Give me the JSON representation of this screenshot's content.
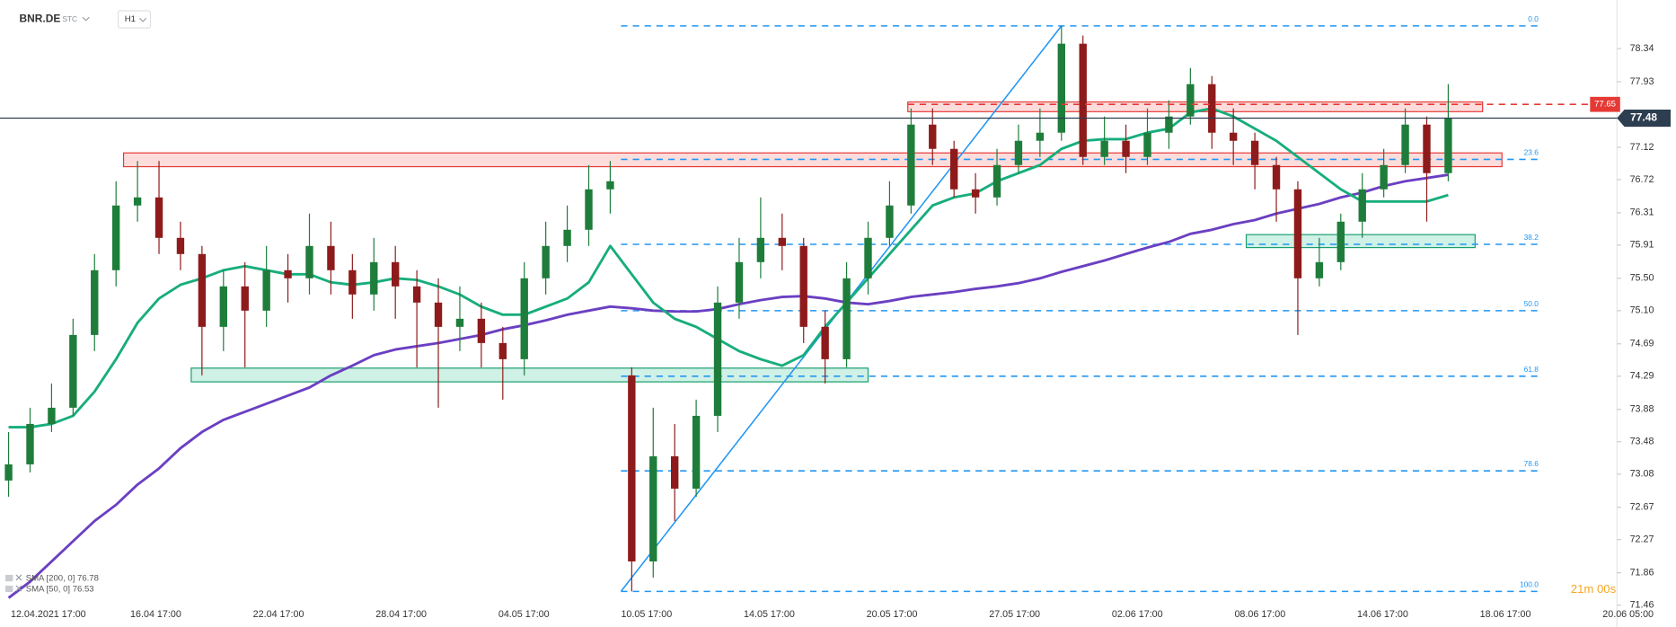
{
  "header": {
    "symbol": "BNR.DE",
    "badge": "STC",
    "interval": "H1"
  },
  "countdown": "21m 00s",
  "chart_data": {
    "type": "candlestick",
    "x_labels": [
      "12.04.2021 17:00",
      "16.04 17:00",
      "22.04 17:00",
      "28.04 17:00",
      "04.05 17:00",
      "10.05 17:00",
      "14.05 17:00",
      "20.05 17:00",
      "27.05 17:00",
      "02.06 17:00",
      "08.06 17:00",
      "14.06 17:00",
      "18.06 17:00",
      "20.06 05:00"
    ],
    "ylim": [
      71.19,
      78.94
    ],
    "yticks": [
      78.34,
      77.93,
      77.12,
      76.72,
      76.31,
      75.91,
      {
        "value": 75.5,
        "label": "75.50"
      },
      {
        "value": 75.1,
        "label": "75.10"
      },
      74.69,
      74.29,
      73.88,
      73.48,
      73.08,
      72.67,
      72.27,
      71.86,
      71.46
    ],
    "up_color": "#1e7d3a",
    "down_color": "#8e1b1b",
    "open": [
      73.0,
      73.2,
      73.7,
      73.9,
      74.8,
      75.6,
      76.4,
      76.5,
      76.0,
      75.8,
      74.9,
      75.4,
      75.1,
      75.6,
      75.5,
      75.9,
      75.6,
      75.3,
      75.7,
      75.4,
      75.2,
      74.9,
      75.0,
      74.7,
      74.5,
      75.5,
      75.9,
      76.1,
      76.6,
      74.3,
      72.0,
      73.3,
      72.9,
      73.8,
      75.2,
      75.7,
      76.0,
      75.9,
      74.9,
      74.5,
      75.5,
      76.0,
      76.4,
      77.4,
      77.1,
      76.6,
      76.5,
      76.9,
      77.2,
      77.3,
      78.4,
      77.0,
      77.2,
      77.0,
      77.3,
      77.5,
      77.9,
      77.3,
      77.2,
      76.9,
      76.6,
      75.5,
      75.7,
      76.2,
      76.6,
      76.9,
      77.4,
      76.8
    ],
    "high": [
      73.6,
      73.9,
      74.2,
      75.0,
      75.8,
      76.7,
      76.95,
      76.95,
      76.2,
      75.9,
      75.6,
      75.7,
      75.9,
      75.8,
      76.3,
      76.2,
      75.8,
      76.0,
      75.9,
      75.6,
      75.5,
      75.4,
      75.2,
      74.9,
      75.7,
      76.2,
      76.4,
      76.9,
      76.95,
      74.4,
      73.9,
      73.7,
      74.0,
      75.4,
      76.0,
      76.5,
      76.3,
      76.0,
      75.1,
      75.7,
      76.2,
      76.7,
      77.6,
      77.6,
      77.2,
      76.8,
      77.1,
      77.4,
      77.6,
      78.62,
      78.5,
      77.5,
      77.4,
      77.6,
      77.7,
      78.1,
      78.0,
      77.6,
      77.3,
      77.0,
      76.7,
      76.0,
      76.3,
      76.8,
      77.1,
      77.6,
      77.5,
      77.9
    ],
    "low": [
      72.8,
      73.1,
      73.6,
      73.8,
      74.6,
      75.4,
      76.2,
      75.8,
      75.6,
      74.3,
      74.6,
      74.4,
      74.9,
      75.2,
      75.3,
      75.3,
      75.0,
      75.1,
      75.0,
      74.4,
      73.9,
      74.6,
      74.4,
      74.0,
      74.3,
      75.3,
      75.7,
      75.9,
      76.3,
      71.63,
      71.8,
      72.5,
      72.8,
      73.6,
      75.0,
      75.5,
      75.6,
      74.7,
      74.2,
      74.4,
      75.3,
      75.9,
      76.3,
      76.9,
      76.5,
      76.3,
      76.4,
      76.8,
      77.0,
      77.2,
      76.9,
      76.9,
      76.8,
      76.9,
      77.1,
      77.4,
      77.1,
      76.9,
      76.6,
      76.2,
      74.8,
      75.4,
      75.6,
      76.0,
      76.5,
      76.8,
      76.2,
      76.7
    ],
    "close": [
      73.2,
      73.7,
      73.9,
      74.8,
      75.6,
      76.4,
      76.5,
      76.0,
      75.8,
      74.9,
      75.4,
      75.1,
      75.6,
      75.5,
      75.9,
      75.6,
      75.3,
      75.7,
      75.4,
      75.2,
      74.9,
      75.0,
      74.7,
      74.5,
      75.5,
      75.9,
      76.1,
      76.6,
      76.7,
      72.0,
      73.3,
      72.9,
      73.8,
      75.2,
      75.7,
      76.0,
      75.9,
      74.9,
      74.5,
      75.5,
      76.0,
      76.4,
      77.4,
      77.1,
      76.6,
      76.5,
      76.9,
      77.2,
      77.3,
      78.4,
      77.0,
      77.2,
      77.0,
      77.3,
      77.5,
      77.9,
      77.3,
      77.2,
      76.9,
      76.6,
      75.5,
      75.7,
      76.2,
      76.6,
      76.9,
      77.4,
      76.8,
      77.48
    ],
    "series": [
      {
        "name": "SMA [200, 0]",
        "legend_value": 76.78,
        "color": "#6b3fc2",
        "values": [
          71.55,
          71.75,
          72.0,
          72.25,
          72.5,
          72.7,
          72.95,
          73.15,
          73.4,
          73.6,
          73.75,
          73.85,
          73.95,
          74.05,
          74.15,
          74.3,
          74.42,
          74.55,
          74.62,
          74.66,
          74.7,
          74.75,
          74.8,
          74.87,
          74.92,
          74.98,
          75.05,
          75.1,
          75.15,
          75.13,
          75.1,
          75.09,
          75.09,
          75.12,
          75.18,
          75.23,
          75.27,
          75.28,
          75.25,
          75.2,
          75.18,
          75.22,
          75.27,
          75.3,
          75.33,
          75.37,
          75.4,
          75.44,
          75.5,
          75.58,
          75.65,
          75.72,
          75.8,
          75.88,
          75.95,
          76.05,
          76.1,
          76.17,
          76.22,
          76.3,
          76.36,
          76.42,
          76.5,
          76.56,
          76.64,
          76.7,
          76.74,
          76.78
        ]
      },
      {
        "name": "SMA [50, 0]",
        "legend_value": 76.53,
        "color": "#17ad7c",
        "values": [
          73.66,
          73.66,
          73.7,
          73.8,
          74.1,
          74.5,
          74.95,
          75.25,
          75.42,
          75.5,
          75.6,
          75.65,
          75.6,
          75.55,
          75.55,
          75.45,
          75.42,
          75.45,
          75.5,
          75.48,
          75.4,
          75.3,
          75.15,
          75.05,
          75.05,
          75.15,
          75.25,
          75.45,
          75.9,
          75.55,
          75.2,
          75.0,
          74.9,
          74.75,
          74.6,
          74.5,
          74.42,
          74.55,
          74.9,
          75.2,
          75.5,
          75.8,
          76.1,
          76.4,
          76.5,
          76.55,
          76.7,
          76.8,
          76.9,
          77.1,
          77.2,
          77.22,
          77.22,
          77.3,
          77.35,
          77.55,
          77.6,
          77.5,
          77.35,
          77.2,
          77.0,
          76.8,
          76.6,
          76.45,
          76.45,
          76.45,
          76.45,
          76.53
        ]
      }
    ],
    "fib_levels": [
      {
        "label": "0.0",
        "price": 78.62
      },
      {
        "label": "23.6",
        "price": 76.97
      },
      {
        "label": "38.2",
        "price": 75.92
      },
      {
        "label": "50.0",
        "price": 75.1
      },
      {
        "label": "61.8",
        "price": 74.29
      },
      {
        "label": "78.6",
        "price": 73.12
      },
      {
        "label": "100.0",
        "price": 71.63
      }
    ],
    "zones": [
      {
        "kind": "resistance",
        "top": 77.05,
        "bottom": 76.88
      },
      {
        "kind": "resistance",
        "top": 77.68,
        "bottom": 77.56
      },
      {
        "kind": "support",
        "top": 74.39,
        "bottom": 74.22
      },
      {
        "kind": "support",
        "top": 76.04,
        "bottom": 75.88
      }
    ],
    "trend_line": [
      71.63,
      78.62
    ],
    "alert_price": 77.65,
    "last_price": 77.48
  }
}
